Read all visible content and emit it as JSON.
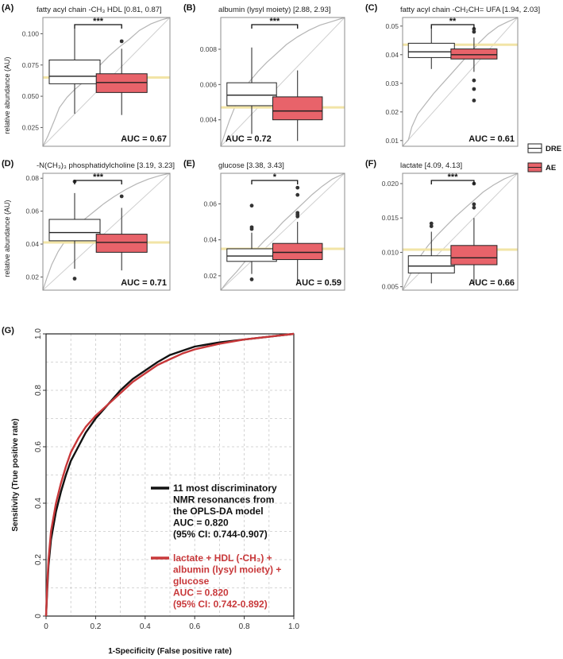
{
  "colors": {
    "dre_fill": "#ffffff",
    "ae_fill": "#e8636a",
    "box_stroke": "#222222",
    "threshold_line": "#f2e4a6",
    "roc_curve_grey": "#b5b5b5",
    "roc_black": "#111111",
    "roc_red": "#c8383a",
    "grid": "#c9c9c9",
    "panel_border": "#8c8c8c"
  },
  "legend": {
    "items": [
      {
        "label": "DRE",
        "color": "#ffffff"
      },
      {
        "label": "AE",
        "color": "#e8636a"
      }
    ]
  },
  "shared_ylabel": "relative abundance (AU)",
  "roc_legend": {
    "series_a_lines": [
      "11 most discriminatory",
      "NMR resonances from",
      "the OPLS-DA model",
      "AUC = 0.820",
      "(95% CI: 0.744-0.907)"
    ],
    "series_b_lines": [
      "lactate + HDL (-CH₃) +",
      "albumin (lysyl moiety)  +",
      "glucose",
      "AUC = 0.820",
      "(95% CI: 0.742-0.892)"
    ]
  },
  "chart_data": [
    {
      "type": "box",
      "letter": "(A)",
      "title": "fatty acyl chain -CH₃ HDL [0.81, 0.87]",
      "categories": [
        "DRE",
        "AE"
      ],
      "ylim": [
        0.01,
        0.113
      ],
      "yticks": [
        0.025,
        0.05,
        0.075,
        0.1
      ],
      "yticklabels": [
        "0.025",
        "0.050",
        "0.075",
        "0.100"
      ],
      "boxes": [
        {
          "name": "DRE",
          "q1": 0.06,
          "median": 0.066,
          "q3": 0.079,
          "whisker_low": 0.036,
          "whisker_high": 0.107,
          "outliers": []
        },
        {
          "name": "AE",
          "q1": 0.053,
          "median": 0.061,
          "q3": 0.068,
          "whisker_low": 0.035,
          "whisker_high": 0.088,
          "outliers": [
            0.094
          ]
        }
      ],
      "threshold": 0.065,
      "significance": "***",
      "auc_label": "AUC = 0.67",
      "auc_position": "bottom-right",
      "roc_curve": [
        [
          0,
          0
        ],
        [
          0.04,
          0.08
        ],
        [
          0.09,
          0.2
        ],
        [
          0.13,
          0.3
        ],
        [
          0.19,
          0.38
        ],
        [
          0.25,
          0.44
        ],
        [
          0.32,
          0.5
        ],
        [
          0.38,
          0.57
        ],
        [
          0.45,
          0.63
        ],
        [
          0.52,
          0.7
        ],
        [
          0.6,
          0.77
        ],
        [
          0.68,
          0.83
        ],
        [
          0.76,
          0.9
        ],
        [
          0.85,
          0.95
        ],
        [
          0.93,
          0.98
        ],
        [
          1,
          1
        ]
      ]
    },
    {
      "type": "box",
      "letter": "(B)",
      "title": "albumin (lysyl moiety) [2.88, 2.93]",
      "categories": [
        "DRE",
        "AE"
      ],
      "ylim": [
        0.0025,
        0.0098
      ],
      "yticks": [
        0.004,
        0.006,
        0.008
      ],
      "yticklabels": [
        "0.004",
        "0.006",
        "0.008"
      ],
      "boxes": [
        {
          "name": "DRE",
          "q1": 0.0048,
          "median": 0.0054,
          "q3": 0.0061,
          "whisker_low": 0.0032,
          "whisker_high": 0.0081,
          "outliers": []
        },
        {
          "name": "AE",
          "q1": 0.004,
          "median": 0.0045,
          "q3": 0.0053,
          "whisker_low": 0.0028,
          "whisker_high": 0.0068,
          "outliers": []
        }
      ],
      "threshold": 0.0047,
      "significance": "***",
      "auc_label": "AUC = 0.72",
      "auc_position": "bottom-left",
      "roc_curve": [
        [
          0,
          0
        ],
        [
          0.03,
          0.09
        ],
        [
          0.07,
          0.2
        ],
        [
          0.12,
          0.32
        ],
        [
          0.17,
          0.42
        ],
        [
          0.23,
          0.5
        ],
        [
          0.3,
          0.58
        ],
        [
          0.37,
          0.65
        ],
        [
          0.45,
          0.72
        ],
        [
          0.53,
          0.79
        ],
        [
          0.62,
          0.85
        ],
        [
          0.71,
          0.9
        ],
        [
          0.8,
          0.94
        ],
        [
          0.9,
          0.97
        ],
        [
          1,
          1
        ]
      ]
    },
    {
      "type": "box",
      "letter": "(C)",
      "title": "fatty acyl chain -CH₂CH= UFA [1.94, 2.03]",
      "categories": [
        "DRE",
        "AE"
      ],
      "ylim": [
        0.008,
        0.053
      ],
      "yticks": [
        0.01,
        0.02,
        0.03,
        0.04,
        0.05
      ],
      "yticklabels": [
        "0.01",
        "0.02",
        "0.03",
        "0.04",
        "0.05"
      ],
      "boxes": [
        {
          "name": "DRE",
          "q1": 0.039,
          "median": 0.041,
          "q3": 0.044,
          "whisker_low": 0.035,
          "whisker_high": 0.05,
          "outliers": []
        },
        {
          "name": "AE",
          "q1": 0.0385,
          "median": 0.04,
          "q3": 0.042,
          "whisker_low": 0.034,
          "whisker_high": 0.046,
          "outliers": [
            0.049,
            0.048,
            0.031,
            0.028,
            0.024
          ]
        }
      ],
      "threshold": 0.0435,
      "significance": "**",
      "auc_label": "AUC = 0.61",
      "auc_position": "bottom-right",
      "roc_curve": [
        [
          0,
          0
        ],
        [
          0.05,
          0.05
        ],
        [
          0.08,
          0.15
        ],
        [
          0.13,
          0.25
        ],
        [
          0.2,
          0.33
        ],
        [
          0.27,
          0.41
        ],
        [
          0.34,
          0.48
        ],
        [
          0.42,
          0.56
        ],
        [
          0.5,
          0.64
        ],
        [
          0.58,
          0.72
        ],
        [
          0.66,
          0.8
        ],
        [
          0.74,
          0.87
        ],
        [
          0.83,
          0.93
        ],
        [
          0.92,
          0.97
        ],
        [
          1,
          1
        ]
      ]
    },
    {
      "type": "box",
      "letter": "(D)",
      "title": "-N(CH₃)₃ phosphatidylcholine [3.19, 3.23]",
      "categories": [
        "DRE",
        "AE"
      ],
      "ylim": [
        0.012,
        0.083
      ],
      "yticks": [
        0.02,
        0.04,
        0.06,
        0.08
      ],
      "yticklabels": [
        "0.02",
        "0.04",
        "0.06",
        "0.08"
      ],
      "boxes": [
        {
          "name": "DRE",
          "q1": 0.042,
          "median": 0.047,
          "q3": 0.055,
          "whisker_low": 0.025,
          "whisker_high": 0.071,
          "outliers": [
            0.078,
            0.019
          ]
        },
        {
          "name": "AE",
          "q1": 0.035,
          "median": 0.041,
          "q3": 0.046,
          "whisker_low": 0.024,
          "whisker_high": 0.062,
          "outliers": [
            0.069
          ]
        }
      ],
      "threshold": 0.041,
      "significance": "***",
      "auc_label": "AUC = 0.71",
      "auc_position": "bottom-right",
      "roc_curve": [
        [
          0,
          0
        ],
        [
          0.03,
          0.1
        ],
        [
          0.07,
          0.22
        ],
        [
          0.12,
          0.33
        ],
        [
          0.18,
          0.43
        ],
        [
          0.25,
          0.52
        ],
        [
          0.32,
          0.6
        ],
        [
          0.4,
          0.67
        ],
        [
          0.48,
          0.74
        ],
        [
          0.56,
          0.8
        ],
        [
          0.65,
          0.86
        ],
        [
          0.74,
          0.91
        ],
        [
          0.83,
          0.95
        ],
        [
          0.92,
          0.98
        ],
        [
          1,
          1
        ]
      ]
    },
    {
      "type": "box",
      "letter": "(E)",
      "title": "glucose [3.38, 3.43]",
      "categories": [
        "DRE",
        "AE"
      ],
      "ylim": [
        0.012,
        0.077
      ],
      "yticks": [
        0.02,
        0.04,
        0.06
      ],
      "yticklabels": [
        "0.02",
        "0.04",
        "0.06"
      ],
      "boxes": [
        {
          "name": "DRE",
          "q1": 0.028,
          "median": 0.031,
          "q3": 0.035,
          "whisker_low": 0.021,
          "whisker_high": 0.044,
          "outliers": [
            0.059,
            0.047,
            0.046,
            0.018
          ]
        },
        {
          "name": "AE",
          "q1": 0.029,
          "median": 0.033,
          "q3": 0.038,
          "whisker_low": 0.017,
          "whisker_high": 0.05,
          "outliers": [
            0.069,
            0.065,
            0.055,
            0.054,
            0.053
          ]
        }
      ],
      "threshold": 0.035,
      "significance": "*",
      "auc_label": "AUC = 0.59",
      "auc_position": "bottom-right",
      "roc_curve": [
        [
          0,
          0
        ],
        [
          0.06,
          0.08
        ],
        [
          0.13,
          0.16
        ],
        [
          0.2,
          0.25
        ],
        [
          0.27,
          0.33
        ],
        [
          0.35,
          0.42
        ],
        [
          0.43,
          0.5
        ],
        [
          0.5,
          0.58
        ],
        [
          0.58,
          0.66
        ],
        [
          0.66,
          0.74
        ],
        [
          0.74,
          0.82
        ],
        [
          0.82,
          0.89
        ],
        [
          0.9,
          0.95
        ],
        [
          1,
          1
        ]
      ]
    },
    {
      "type": "box",
      "letter": "(F)",
      "title": "lactate [4.09, 4.13]",
      "categories": [
        "DRE",
        "AE"
      ],
      "ylim": [
        0.0045,
        0.0215
      ],
      "yticks": [
        0.005,
        0.01,
        0.015,
        0.02
      ],
      "yticklabels": [
        "0.005",
        "0.010",
        "0.015",
        "0.020"
      ],
      "boxes": [
        {
          "name": "DRE",
          "q1": 0.007,
          "median": 0.008,
          "q3": 0.0095,
          "whisker_low": 0.0055,
          "whisker_high": 0.013,
          "outliers": [
            0.0142,
            0.0138
          ]
        },
        {
          "name": "AE",
          "q1": 0.0082,
          "median": 0.0092,
          "q3": 0.011,
          "whisker_low": 0.0055,
          "whisker_high": 0.015,
          "outliers": [
            0.02,
            0.017,
            0.0165
          ]
        }
      ],
      "threshold": 0.0104,
      "significance": "***",
      "auc_label": "AUC = 0.66",
      "auc_position": "bottom-right",
      "roc_curve": [
        [
          0,
          0
        ],
        [
          0.05,
          0.1
        ],
        [
          0.1,
          0.2
        ],
        [
          0.16,
          0.3
        ],
        [
          0.22,
          0.38
        ],
        [
          0.3,
          0.47
        ],
        [
          0.38,
          0.55
        ],
        [
          0.46,
          0.63
        ],
        [
          0.54,
          0.7
        ],
        [
          0.62,
          0.77
        ],
        [
          0.7,
          0.84
        ],
        [
          0.79,
          0.9
        ],
        [
          0.88,
          0.95
        ],
        [
          1,
          1
        ]
      ]
    },
    {
      "type": "line",
      "letter": "(G)",
      "title": "",
      "xlabel": "1-Specificity (False positive rate)",
      "ylabel": "Sensitivity (True positive rate)",
      "xlim": [
        0,
        1
      ],
      "ylim": [
        0,
        1
      ],
      "xticks": [
        0,
        0.2,
        0.4,
        0.6,
        0.8,
        1.0
      ],
      "xticklabels": [
        "0",
        "0.2",
        "0.4",
        "0.6",
        "0.8",
        "1.0"
      ],
      "yticks": [
        0,
        0.2,
        0.4,
        0.6,
        0.8,
        1.0
      ],
      "yticklabels": [
        "0",
        "0.2",
        "0.4",
        "0.6",
        "0.8",
        "1.0"
      ],
      "grid": true,
      "series": [
        {
          "name": "11 most discriminatory NMR resonances from the OPLS-DA model",
          "color": "#111111",
          "x": [
            0,
            0.005,
            0.01,
            0.02,
            0.04,
            0.06,
            0.08,
            0.1,
            0.13,
            0.16,
            0.2,
            0.25,
            0.3,
            0.35,
            0.4,
            0.45,
            0.5,
            0.55,
            0.6,
            0.7,
            0.8,
            0.9,
            1.0
          ],
          "y": [
            0,
            0.1,
            0.18,
            0.27,
            0.37,
            0.44,
            0.5,
            0.55,
            0.6,
            0.65,
            0.7,
            0.75,
            0.8,
            0.84,
            0.87,
            0.9,
            0.925,
            0.94,
            0.955,
            0.97,
            0.98,
            0.99,
            1.0
          ]
        },
        {
          "name": "lactate + HDL (-CH3) + albumin (lysyl moiety) + glucose",
          "color": "#c8383a",
          "x": [
            0,
            0.005,
            0.01,
            0.02,
            0.04,
            0.06,
            0.08,
            0.1,
            0.13,
            0.16,
            0.2,
            0.25,
            0.3,
            0.35,
            0.4,
            0.45,
            0.5,
            0.55,
            0.6,
            0.7,
            0.8,
            0.9,
            1.0
          ],
          "y": [
            0,
            0.12,
            0.2,
            0.3,
            0.4,
            0.47,
            0.53,
            0.58,
            0.63,
            0.67,
            0.71,
            0.75,
            0.79,
            0.83,
            0.86,
            0.89,
            0.91,
            0.93,
            0.945,
            0.965,
            0.98,
            0.99,
            1.0
          ]
        }
      ]
    }
  ]
}
